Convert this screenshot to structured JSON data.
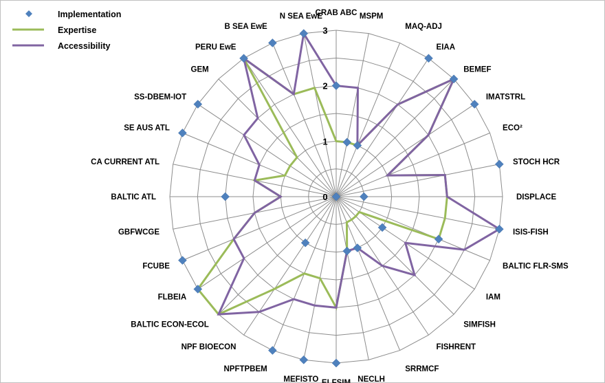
{
  "chart_data": {
    "type": "radar",
    "title": "",
    "categories": [
      "CRAB ABC",
      "MSPM",
      "MAQ-ADJ",
      "EIAA",
      "BEMEF",
      "IMATSTRL",
      "ECO²",
      "STOCH HCR",
      "DISPLACE",
      "ISIS-FISH",
      "BALTIC FLR-SMS",
      "IAM",
      "SIMFISH",
      "FISHRENT",
      "SRRMCF",
      "NECLH",
      "ELFSIM",
      "MEFISTO",
      "NPFTPBEM",
      "NPF BIOECON",
      "BALTIC ECON-ECOL",
      "FLBEIA",
      "FCUBE",
      "GBFWCGE",
      "BALTIC ATL",
      "CA CURRENT ATL",
      "SE AUS ATL",
      "SS-DBEM-IOT",
      "GEM",
      "PERU EwE",
      "B SEA EwE",
      "N SEA EwE"
    ],
    "rlim": [
      0,
      3
    ],
    "ticks": [
      0,
      1,
      2,
      3
    ],
    "tick_labels": [
      "0",
      "1",
      "2",
      "3"
    ],
    "grid_step": 0.5,
    "legend_position": "top-left",
    "series": [
      {
        "name": "Implementation",
        "kind": "markers",
        "color": "#4f81bd",
        "values": [
          2,
          1,
          1,
          3,
          3,
          3,
          0,
          3,
          0.5,
          3,
          2,
          1,
          0,
          0,
          1,
          1,
          3,
          3,
          3,
          1,
          0,
          3,
          3,
          0,
          2,
          0,
          3,
          3,
          0,
          3,
          3,
          3
        ]
      },
      {
        "name": "Expertise",
        "kind": "line",
        "color": "#9bbb59",
        "values": [
          1,
          1,
          1,
          2,
          3,
          2,
          1,
          2,
          2,
          2,
          2,
          0.5,
          0.5,
          0.5,
          0.5,
          1,
          2,
          1.5,
          1.5,
          2,
          3,
          3,
          2,
          1.5,
          1,
          1.5,
          1,
          1,
          1,
          3,
          2,
          2
        ]
      },
      {
        "name": "Accessibility",
        "kind": "line",
        "color": "#8064a2",
        "values": [
          2,
          2,
          1,
          2,
          3,
          2,
          1,
          2,
          2,
          3,
          2.5,
          1.5,
          2,
          1.5,
          1,
          1,
          2,
          2,
          2,
          2.5,
          3,
          2,
          2,
          1.5,
          1,
          1.5,
          1.5,
          2,
          2,
          3,
          2,
          3
        ]
      }
    ]
  }
}
